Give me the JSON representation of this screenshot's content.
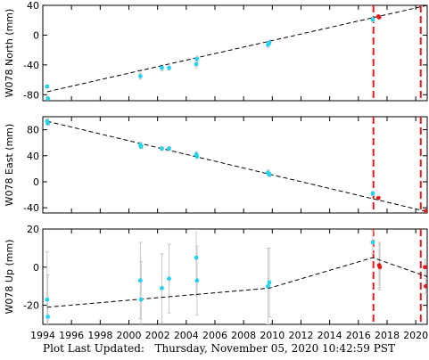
{
  "footer": {
    "label": "Plot Last Updated:",
    "timestamp": "Thursday, November 05, 2020 10:42:59 PST"
  },
  "colors": {
    "data_point": "#22d3ee",
    "recent_point": "#e41a1c",
    "event_line": "#e41a1c",
    "trend_line": "#000000",
    "error_bar": "#c8c8c8"
  },
  "chart_data": [
    {
      "type": "scatter",
      "ylabel": "W078 North (mm)",
      "xlim": [
        1994,
        2020.8
      ],
      "ylim": [
        -88,
        40
      ],
      "yticks": [
        -80,
        -40,
        0,
        40
      ],
      "xticks": [],
      "event_lines": [
        2017.05,
        2020.35
      ],
      "trend": {
        "x": [
          1994.3,
          2020.8
        ],
        "y": [
          -76,
          40
        ]
      },
      "points": [
        {
          "x": 1994.3,
          "y": -69,
          "err": 2,
          "recent": false
        },
        {
          "x": 1994.35,
          "y": -85,
          "err": 2,
          "recent": false
        },
        {
          "x": 2000.8,
          "y": -55,
          "err": 4,
          "recent": false
        },
        {
          "x": 2002.3,
          "y": -44,
          "err": 4,
          "recent": false
        },
        {
          "x": 2002.8,
          "y": -44,
          "err": 3,
          "recent": false
        },
        {
          "x": 2004.7,
          "y": -39,
          "err": 5,
          "recent": false
        },
        {
          "x": 2004.75,
          "y": -32,
          "err": 4,
          "recent": false
        },
        {
          "x": 2009.7,
          "y": -13,
          "err": 4,
          "recent": false
        },
        {
          "x": 2009.8,
          "y": -10,
          "err": 3,
          "recent": false
        },
        {
          "x": 2017.0,
          "y": 21,
          "err": 3,
          "recent": false
        },
        {
          "x": 2017.4,
          "y": 25,
          "err": 2,
          "recent": true
        },
        {
          "x": 2017.45,
          "y": 24,
          "err": 2,
          "recent": true
        }
      ]
    },
    {
      "type": "scatter",
      "ylabel": "W078 East (mm)",
      "xlim": [
        1994,
        2020.8
      ],
      "ylim": [
        -48,
        100
      ],
      "yticks": [
        -40,
        0,
        40,
        80
      ],
      "xticks": [],
      "event_lines": [
        2017.05,
        2020.35
      ],
      "trend": {
        "x": [
          1994.3,
          2020.8
        ],
        "y": [
          93,
          -46
        ]
      },
      "points": [
        {
          "x": 1994.3,
          "y": 93,
          "err": 4,
          "recent": false
        },
        {
          "x": 1994.35,
          "y": 90,
          "err": 3,
          "recent": false
        },
        {
          "x": 2000.8,
          "y": 57,
          "err": 4,
          "recent": false
        },
        {
          "x": 2000.85,
          "y": 54,
          "err": 3,
          "recent": false
        },
        {
          "x": 2002.3,
          "y": 51,
          "err": 3,
          "recent": false
        },
        {
          "x": 2002.8,
          "y": 51,
          "err": 3,
          "recent": false
        },
        {
          "x": 2004.7,
          "y": 42,
          "err": 4,
          "recent": false
        },
        {
          "x": 2004.75,
          "y": 39,
          "err": 3,
          "recent": false
        },
        {
          "x": 2009.7,
          "y": 14,
          "err": 4,
          "recent": false
        },
        {
          "x": 2009.8,
          "y": 11,
          "err": 3,
          "recent": false
        },
        {
          "x": 2017.0,
          "y": -18,
          "err": 3,
          "recent": false
        },
        {
          "x": 2017.4,
          "y": -25,
          "err": 2,
          "recent": true
        },
        {
          "x": 2020.7,
          "y": -45,
          "err": 2,
          "recent": true
        }
      ]
    },
    {
      "type": "scatter",
      "ylabel": "W078 Up (mm)",
      "xlim": [
        1994,
        2020.8
      ],
      "ylim": [
        -30,
        20
      ],
      "yticks": [
        -20,
        0,
        20
      ],
      "xticks": [
        1994,
        1996,
        1998,
        2000,
        2002,
        2004,
        2006,
        2008,
        2010,
        2012,
        2014,
        2016,
        2018,
        2020
      ],
      "event_lines": [
        2017.05,
        2020.35
      ],
      "trend": {
        "x": [
          1994.3,
          2009.8,
          2017.0,
          2020.8
        ],
        "y": [
          -21,
          -11,
          5,
          -5
        ]
      },
      "points": [
        {
          "x": 1994.3,
          "y": -17,
          "err": 25,
          "recent": false
        },
        {
          "x": 1994.35,
          "y": -26,
          "err": 22,
          "recent": false
        },
        {
          "x": 2000.8,
          "y": -7,
          "err": 20,
          "recent": false
        },
        {
          "x": 2000.85,
          "y": -17,
          "err": 20,
          "recent": false
        },
        {
          "x": 2002.3,
          "y": -11,
          "err": 18,
          "recent": false
        },
        {
          "x": 2002.8,
          "y": -6,
          "err": 18,
          "recent": false
        },
        {
          "x": 2004.7,
          "y": 5,
          "err": 20,
          "recent": false
        },
        {
          "x": 2004.75,
          "y": -7,
          "err": 18,
          "recent": false
        },
        {
          "x": 2009.7,
          "y": -10,
          "err": 20,
          "recent": false
        },
        {
          "x": 2009.8,
          "y": -8,
          "err": 18,
          "recent": false
        },
        {
          "x": 2017.0,
          "y": 13,
          "err": 6,
          "recent": false
        },
        {
          "x": 2017.45,
          "y": 1,
          "err": 12,
          "recent": true
        },
        {
          "x": 2017.5,
          "y": 0,
          "err": 12,
          "recent": true
        },
        {
          "x": 2020.65,
          "y": 0,
          "err": 4,
          "recent": true
        },
        {
          "x": 2020.7,
          "y": -10,
          "err": 4,
          "recent": true
        }
      ]
    }
  ]
}
